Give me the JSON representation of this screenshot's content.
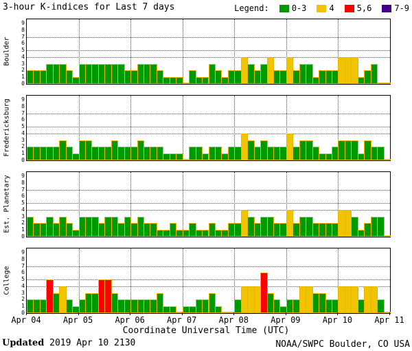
{
  "title": "3-hour K-indices for Last 7 days",
  "legend": {
    "label": "Legend:",
    "items": [
      {
        "label": "0-3",
        "color": "#009a00"
      },
      {
        "label": "4",
        "color": "#f0c400"
      },
      {
        "label": "5,6",
        "color": "#ff0000"
      },
      {
        "label": "7-9",
        "color": "#44008c"
      }
    ]
  },
  "colors": {
    "k0_3": "#009a00",
    "k4": "#f0c400",
    "k5_6": "#ff0000",
    "k7_9": "#44008c",
    "bar_outline": "#e8b500",
    "grid": "#555555"
  },
  "chart_data": {
    "type": "bar",
    "title": "3-hour K-indices for Last 7 days",
    "xlabel": "Coordinate Universal Time (UTC)",
    "x_tick_labels": [
      "Apr 04",
      "Apr 05",
      "Apr 06",
      "Apr 07",
      "Apr 08",
      "Apr 09",
      "Apr 10",
      "Apr 11"
    ],
    "bars_per_day": 8,
    "days": 7,
    "ylim": [
      0,
      9
    ],
    "y_ticks": [
      0,
      1,
      2,
      3,
      4,
      5,
      6,
      7,
      8,
      9
    ],
    "dotted_y_levels": [
      4,
      5,
      7
    ],
    "grid": true,
    "legend_position": "top-right",
    "panels": [
      {
        "station": "Boulder",
        "values": [
          2,
          2,
          2,
          3,
          3,
          3,
          2,
          1,
          3,
          3,
          3,
          3,
          3,
          3,
          3,
          2,
          2,
          3,
          3,
          3,
          2,
          1,
          1,
          1,
          0,
          2,
          1,
          1,
          3,
          2,
          1,
          2,
          2,
          4,
          3,
          2,
          3,
          4,
          2,
          2,
          4,
          2,
          3,
          3,
          1,
          2,
          2,
          2,
          4,
          4,
          4,
          1,
          2,
          3,
          0,
          0
        ]
      },
      {
        "station": "Fredericksburg",
        "values": [
          2,
          2,
          2,
          2,
          2,
          3,
          2,
          1,
          3,
          3,
          2,
          2,
          2,
          3,
          2,
          2,
          2,
          3,
          2,
          2,
          2,
          1,
          1,
          1,
          0,
          2,
          2,
          1,
          2,
          2,
          1,
          2,
          2,
          4,
          3,
          2,
          3,
          2,
          2,
          2,
          4,
          2,
          3,
          3,
          2,
          1,
          1,
          2,
          3,
          3,
          3,
          1,
          3,
          2,
          2,
          0
        ]
      },
      {
        "station": "Est. Planetary",
        "values": [
          3,
          2,
          2,
          3,
          2,
          3,
          2,
          1,
          3,
          3,
          3,
          2,
          3,
          3,
          2,
          3,
          2,
          3,
          2,
          2,
          1,
          1,
          2,
          1,
          1,
          2,
          1,
          1,
          2,
          1,
          1,
          2,
          2,
          4,
          3,
          2,
          3,
          3,
          2,
          2,
          4,
          2,
          3,
          3,
          2,
          2,
          2,
          2,
          4,
          4,
          3,
          1,
          2,
          3,
          3,
          0
        ]
      },
      {
        "station": "College",
        "values": [
          2,
          2,
          2,
          5,
          3,
          4,
          2,
          1,
          2,
          3,
          3,
          5,
          5,
          3,
          2,
          2,
          2,
          2,
          2,
          2,
          3,
          1,
          1,
          0,
          1,
          1,
          2,
          2,
          3,
          1,
          0,
          0,
          2,
          4,
          4,
          4,
          6,
          3,
          2,
          1,
          2,
          2,
          4,
          4,
          3,
          3,
          2,
          2,
          4,
          4,
          4,
          2,
          4,
          4,
          2,
          0
        ]
      }
    ]
  },
  "footer": {
    "updated_label": "Updated",
    "updated_value": "2019 Apr 10 2130",
    "source": "NOAA/SWPC Boulder, CO USA"
  }
}
